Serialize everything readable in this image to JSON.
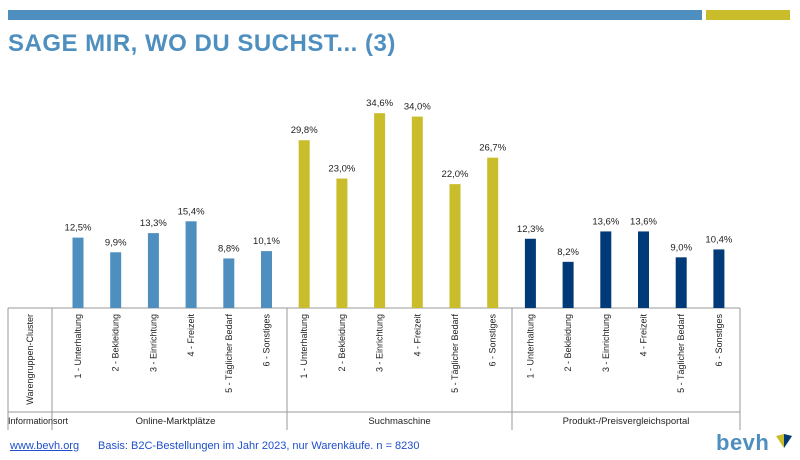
{
  "header": {
    "title": "SAGE MIR, WO DU SUCHST... (3)"
  },
  "footer": {
    "link": "www.bevh.org",
    "note": "Basis: B2C-Bestellungen im Jahr 2023, nur Warenkäufe. n = 8230",
    "logo_text": "bevh"
  },
  "colors": {
    "online": "#4f8fbf",
    "such": "#c9bd2b",
    "preis": "#003a78"
  },
  "chart_data": {
    "type": "bar",
    "title": "SAGE MIR, WO DU SUCHST... (3)",
    "row_header_top": "Warengruppen-Cluster",
    "row_header_bottom": "Informationsort",
    "ylim": [
      0,
      40
    ],
    "grid": false,
    "groups": [
      {
        "name": "Online-Marktplätze",
        "color": "#4f8fbf",
        "categories": [
          "1 - Unterhaltung",
          "2 - Bekleidung",
          "3 - Einrichtung",
          "4 - Freizeit",
          "5 - Täglicher Bedarf",
          "6 - Sonstiges"
        ],
        "values": [
          12.5,
          9.9,
          13.3,
          15.4,
          8.8,
          10.1
        ],
        "labels": [
          "12,5%",
          "9,9%",
          "13,3%",
          "15,4%",
          "8,8%",
          "10,1%"
        ]
      },
      {
        "name": "Suchmaschine",
        "color": "#c9bd2b",
        "categories": [
          "1 - Unterhaltung",
          "2 - Bekleidung",
          "3 - Einrichtung",
          "4 - Freizeit",
          "5 - Täglicher Bedarf",
          "6 - Sonstiges"
        ],
        "values": [
          29.8,
          23.0,
          34.6,
          34.0,
          22.0,
          26.7
        ],
        "labels": [
          "29,8%",
          "23,0%",
          "34,6%",
          "34,0%",
          "22,0%",
          "26,7%"
        ]
      },
      {
        "name": "Produkt-/Preisvergleichsportal",
        "color": "#003a78",
        "categories": [
          "1 - Unterhaltung",
          "2 - Bekleidung",
          "3 - Einrichtung",
          "4 - Freizeit",
          "5 - Täglicher Bedarf",
          "6 - Sonstiges"
        ],
        "values": [
          12.3,
          8.2,
          13.6,
          13.6,
          9.0,
          10.4
        ],
        "labels": [
          "12,3%",
          "8,2%",
          "13,6%",
          "13,6%",
          "9,0%",
          "10,4%"
        ]
      }
    ]
  }
}
